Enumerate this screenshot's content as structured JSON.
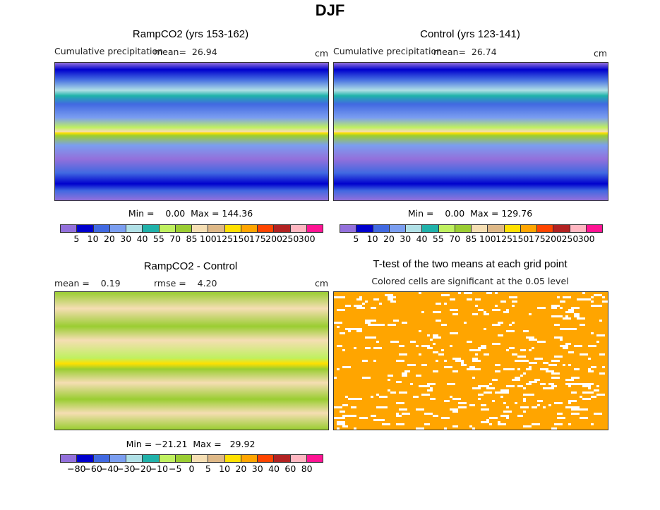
{
  "title": "DJF",
  "panels": [
    {
      "title": "RampCO2 (yrs 153-162)",
      "label": "Cumulative precipitation",
      "mean": "mean=  26.94",
      "units": "cm",
      "minmax": "Min =    0.00  Max = 144.36"
    },
    {
      "title": "Control (yrs 123-141)",
      "label": "Cumulative precipitation",
      "mean": "mean=  26.74",
      "units": "cm",
      "minmax": "Min =    0.00  Max = 129.76"
    },
    {
      "title": "RampCO2 - Control",
      "mean": "mean =    0.19",
      "rmse": "rmse =    4.20",
      "units": "cm",
      "minmax": "Min = −21.21  Max =   29.92"
    },
    {
      "title": "T-test of the two means at each grid point",
      "subtitle": "Colored cells are significant at the 0.05 level"
    }
  ],
  "colorbar_colors": [
    "#9370DB",
    "#0000CD",
    "#4169E1",
    "#7B9EF0",
    "#B0E0E6",
    "#20B2AA",
    "#BFF060",
    "#9ACD32",
    "#F5DEB3",
    "#DEB887",
    "#FFE000",
    "#FFA500",
    "#FF4500",
    "#B22222",
    "#FFB6C1",
    "#FF1493"
  ],
  "precip_labels": [
    "5",
    "10",
    "20",
    "30",
    "40",
    "55",
    "70",
    "85",
    "100",
    "125",
    "150",
    "175",
    "200",
    "250",
    "300"
  ],
  "diff_labels": [
    "−80",
    "−60",
    "−40",
    "−30",
    "−20",
    "−10",
    "−5",
    "0",
    "5",
    "10",
    "20",
    "30",
    "40",
    "60",
    "80"
  ],
  "ttest_color": "#FFA500"
}
